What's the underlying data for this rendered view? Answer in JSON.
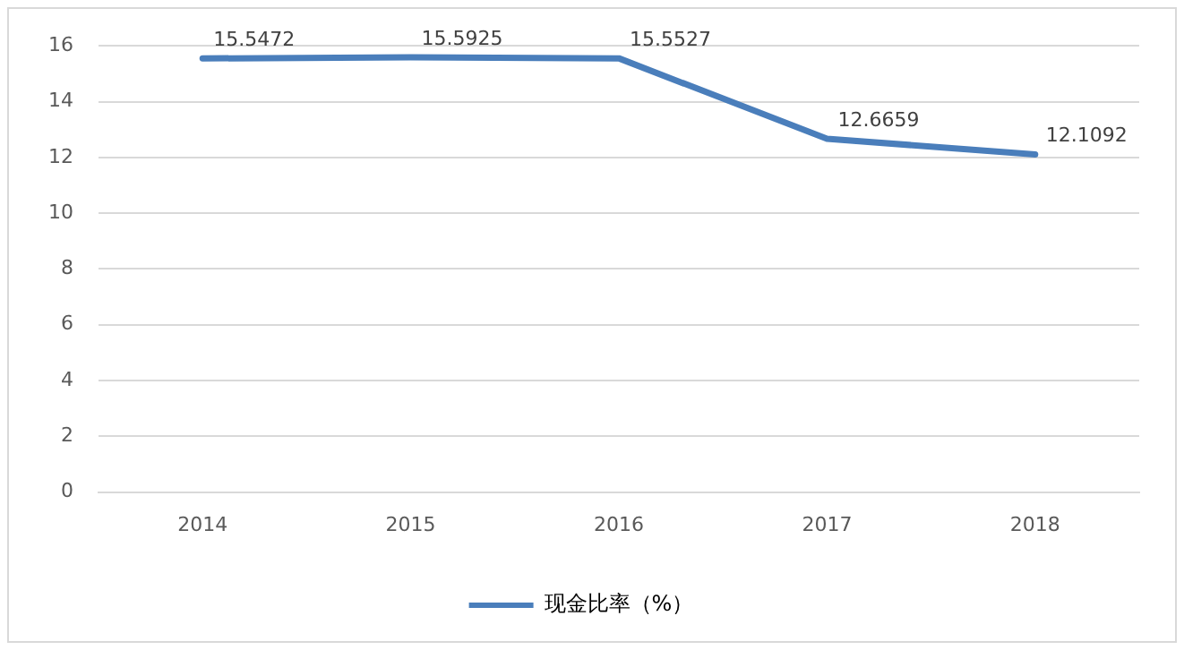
{
  "chart_data": {
    "type": "line",
    "categories": [
      "2014",
      "2015",
      "2016",
      "2017",
      "2018"
    ],
    "series": [
      {
        "name": "现金比率（%）",
        "color": "#4a7ebb",
        "values": [
          15.5472,
          15.5925,
          15.5527,
          12.6659,
          12.1092
        ]
      }
    ],
    "ylim": [
      0,
      16
    ],
    "yticks": [
      0,
      2,
      4,
      6,
      8,
      10,
      12,
      14,
      16
    ],
    "grid": "y",
    "legend": "bottom",
    "data_labels": true,
    "marker": "none"
  }
}
